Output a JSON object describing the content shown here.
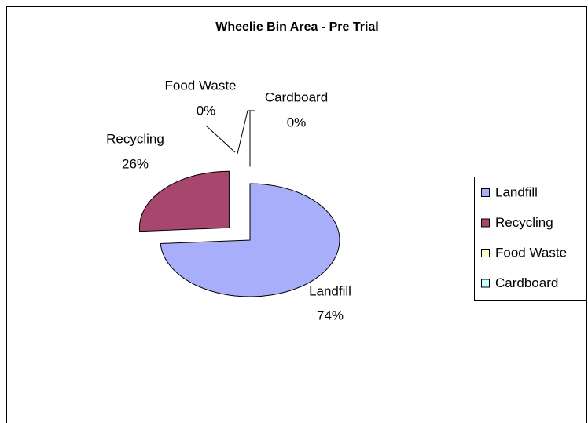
{
  "chart_data": {
    "type": "pie",
    "title": "Wheelie Bin Area - Pre Trial",
    "categories": [
      "Landfill",
      "Recycling",
      "Food Waste",
      "Cardboard"
    ],
    "values": [
      74,
      26,
      0,
      0
    ],
    "value_labels": [
      "74%",
      "26%",
      "0%",
      "0%"
    ],
    "colors": [
      "#a9aefa",
      "#a8476e",
      "#ffffcc",
      "#ccffff"
    ],
    "legend": "right"
  }
}
